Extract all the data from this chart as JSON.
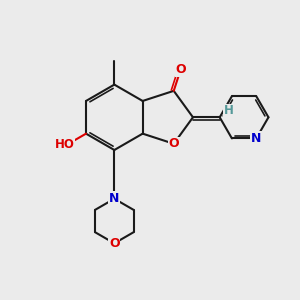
{
  "bg_color": "#ebebeb",
  "bond_color": "#1a1a1a",
  "O_color": "#dd0000",
  "N_color": "#0000cc",
  "H_color": "#559999",
  "lw": 1.5,
  "lw2": 1.2,
  "xlim": [
    0,
    10
  ],
  "ylim": [
    0,
    10
  ]
}
